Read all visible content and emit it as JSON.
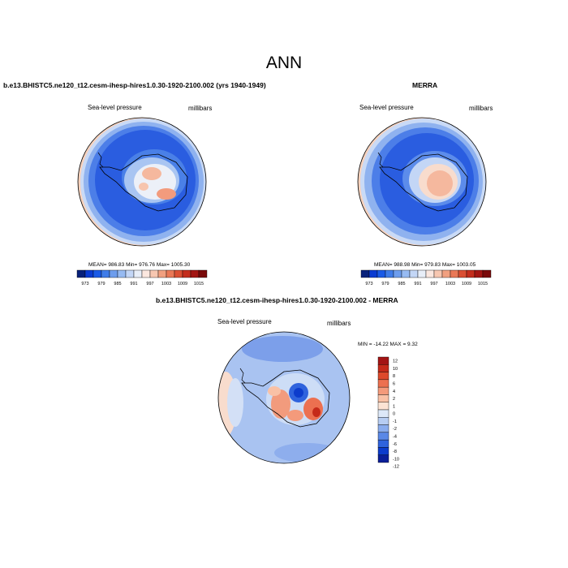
{
  "main_title": "ANN",
  "panels": [
    {
      "title": "b.e13.BHISTC5.ne120_t12.cesm-ihesp-hires1.0.30-1920-2100.002 (yrs 1940-1949)",
      "left_label": "Sea-level pressure",
      "right_label": "millibars",
      "stats": "MEAN= 986.83  Min= 976.76  Max= 1005.30"
    },
    {
      "title": "MERRA",
      "left_label": "Sea-level pressure",
      "right_label": "millibars",
      "stats": "MEAN= 988.98  Min= 979.83  Max= 1003.05"
    },
    {
      "title": "b.e13.BHISTC5.ne120_t12.cesm-ihesp-hires1.0.30-1920-2100.002 - MERRA",
      "left_label": "Sea-level pressure",
      "right_label": "millibars",
      "stats": "MIN = -14.22 MAX =   9.32"
    }
  ],
  "colorbar_slp": {
    "labels": [
      "973",
      "979",
      "985",
      "991",
      "997",
      "1003",
      "1009",
      "1015"
    ],
    "colors": [
      "#08217a",
      "#0a3bd1",
      "#1a5ae6",
      "#3f7ce8",
      "#6d9ded",
      "#97bbf2",
      "#c3d6f6",
      "#e8eef8",
      "#fbe7df",
      "#f7c7b1",
      "#f1a080",
      "#e97856",
      "#da4f33",
      "#c32e1d",
      "#a31613",
      "#7a0a0a"
    ]
  },
  "colorbar_diff": {
    "labels": [
      "12",
      "10",
      "8",
      "6",
      "4",
      "2",
      "1",
      "0",
      "-1",
      "-2",
      "-4",
      "-6",
      "-8",
      "-10",
      "-12"
    ],
    "colors": [
      "#a31414",
      "#c52a1a",
      "#dd4a2c",
      "#ec7050",
      "#f49a7b",
      "#f9c1a6",
      "#fce3d4",
      "#dde8f8",
      "#b7cdf2",
      "#8aaced",
      "#5a88e6",
      "#2f63dd",
      "#0c3ccc",
      "#0a1f98"
    ]
  }
}
